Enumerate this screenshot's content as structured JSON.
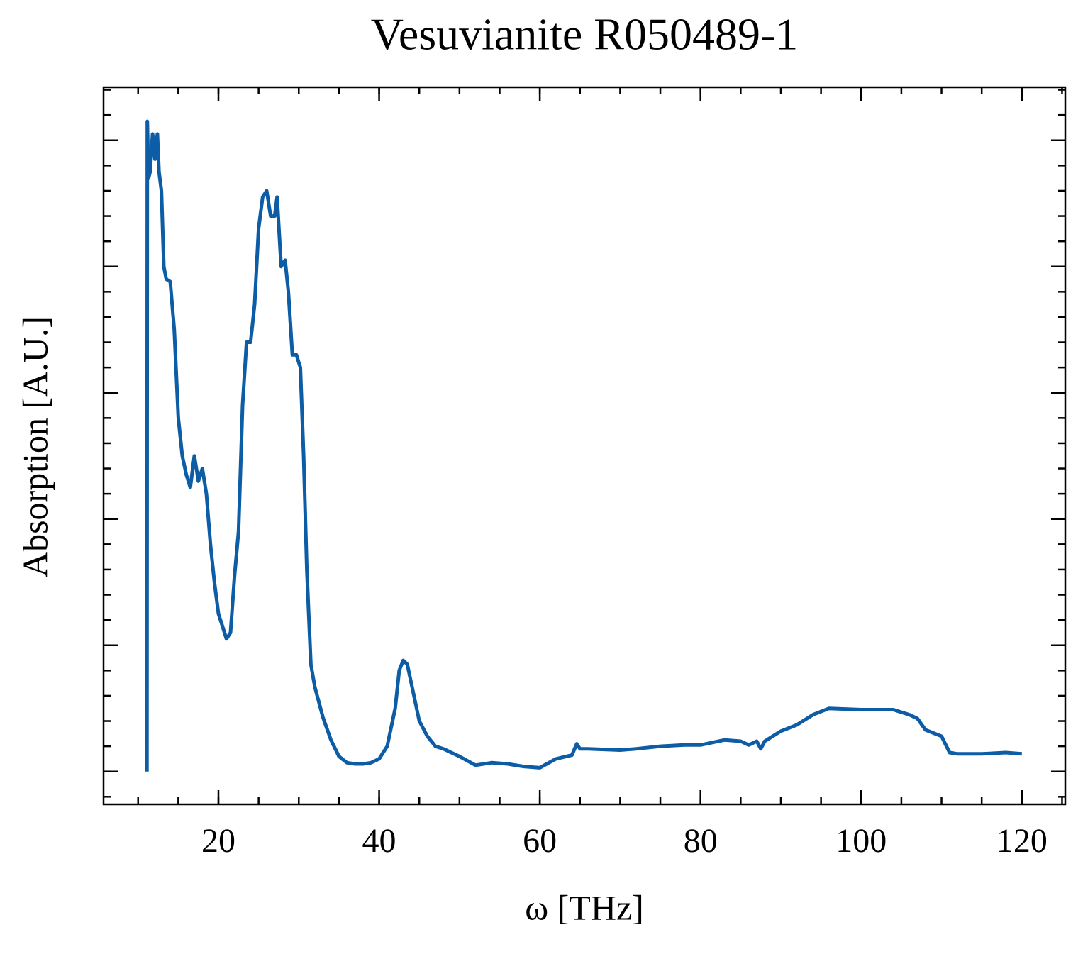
{
  "chart_data": {
    "type": "line",
    "title": "Vesuvianite R050489-1",
    "x_label": "ω [THz]",
    "y_label": "Absorption [A.U.]",
    "xlim": [
      5.7,
      125.4
    ],
    "xticks": [
      20,
      40,
      60,
      80,
      100,
      120
    ],
    "xminor_step": 5,
    "ylim": [
      -0.26,
      5.42
    ],
    "yticks": [
      0,
      1,
      2,
      3,
      4,
      5
    ],
    "ytick_labels": false,
    "yminor_step": 0.2,
    "grid": false,
    "series": [
      {
        "color": "#0c5da5",
        "x": [
          11.1,
          11.15,
          11.3,
          11.5,
          11.8,
          12.1,
          12.4,
          12.6,
          12.9,
          13.2,
          13.5,
          14.0,
          14.5,
          15.0,
          15.5,
          16.0,
          16.5,
          17.0,
          17.5,
          18.0,
          18.5,
          19.0,
          19.5,
          20.0,
          20.5,
          21.0,
          21.5,
          22.0,
          22.5,
          23.0,
          23.5,
          24.0,
          24.5,
          25.0,
          25.5,
          26.0,
          26.5,
          27.0,
          27.3,
          27.8,
          28.3,
          28.7,
          29.2,
          29.7,
          30.2,
          30.6,
          31.0,
          31.5,
          32.0,
          32.5,
          33.0,
          34.0,
          35.0,
          36.0,
          37.0,
          38.0,
          39.0,
          40.0,
          41.0,
          42.0,
          42.5,
          43.0,
          43.5,
          44.0,
          45.0,
          46.0,
          47.0,
          48.0,
          50.0,
          52.0,
          54.0,
          56.0,
          58.0,
          60.0,
          62.0,
          64.0,
          64.6,
          65.0,
          66.0,
          70.0,
          72.0,
          75.0,
          78.0,
          80.0,
          83.0,
          85.0,
          86.0,
          87.0,
          87.5,
          88.0,
          90.0,
          92.0,
          94.0,
          96.0,
          100.0,
          104.0,
          106.0,
          107.0,
          108.0,
          110.0,
          111.0,
          112.0,
          115.0,
          118.0,
          120.0
        ],
        "values": [
          0,
          5.15,
          4.7,
          4.75,
          5.05,
          4.85,
          5.05,
          4.75,
          4.6,
          4.0,
          3.9,
          3.88,
          3.5,
          2.8,
          2.5,
          2.35,
          2.25,
          2.5,
          2.3,
          2.4,
          2.2,
          1.8,
          1.5,
          1.25,
          1.15,
          1.05,
          1.1,
          1.55,
          1.9,
          2.9,
          3.4,
          3.4,
          3.7,
          4.3,
          4.55,
          4.6,
          4.4,
          4.4,
          4.55,
          4.0,
          4.05,
          3.8,
          3.3,
          3.3,
          3.2,
          2.5,
          1.6,
          0.85,
          0.67,
          0.55,
          0.43,
          0.25,
          0.12,
          0.07,
          0.06,
          0.06,
          0.07,
          0.1,
          0.2,
          0.5,
          0.8,
          0.88,
          0.85,
          0.7,
          0.4,
          0.28,
          0.2,
          0.18,
          0.12,
          0.05,
          0.07,
          0.06,
          0.04,
          0.03,
          0.1,
          0.13,
          0.22,
          0.18,
          0.18,
          0.17,
          0.18,
          0.2,
          0.21,
          0.21,
          0.25,
          0.24,
          0.21,
          0.24,
          0.18,
          0.24,
          0.32,
          0.37,
          0.45,
          0.5,
          0.49,
          0.49,
          0.45,
          0.42,
          0.33,
          0.28,
          0.15,
          0.14,
          0.14,
          0.15,
          0.14
        ]
      }
    ]
  }
}
